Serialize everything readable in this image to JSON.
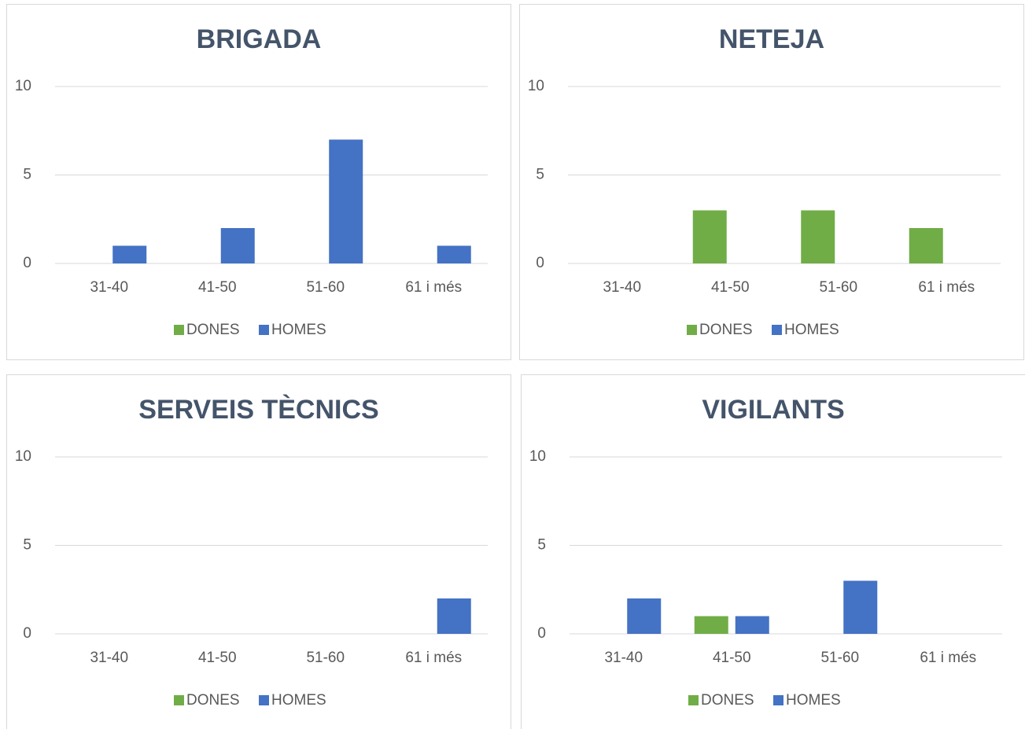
{
  "chart_data": [
    {
      "type": "bar",
      "title": "BRIGADA",
      "categories": [
        "31-40",
        "41-50",
        "51-60",
        "61 i més"
      ],
      "series": [
        {
          "name": "DONES",
          "color": "#70ad47",
          "values": [
            0,
            0,
            0,
            0
          ]
        },
        {
          "name": "HOMES",
          "color": "#4472c4",
          "values": [
            1,
            2,
            7,
            1
          ]
        }
      ],
      "ylim": [
        0,
        10
      ],
      "yticks": [
        0,
        5,
        10
      ],
      "grid": true,
      "legend": "bottom"
    },
    {
      "type": "bar",
      "title": "NETEJA",
      "categories": [
        "31-40",
        "41-50",
        "51-60",
        "61 i més"
      ],
      "series": [
        {
          "name": "DONES",
          "color": "#70ad47",
          "values": [
            0,
            3,
            3,
            2
          ]
        },
        {
          "name": "HOMES",
          "color": "#4472c4",
          "values": [
            0,
            0,
            0,
            0
          ]
        }
      ],
      "ylim": [
        0,
        10
      ],
      "yticks": [
        0,
        5,
        10
      ],
      "grid": true,
      "legend": "bottom"
    },
    {
      "type": "bar",
      "title": "SERVEIS TÈCNICS",
      "categories": [
        "31-40",
        "41-50",
        "51-60",
        "61 i més"
      ],
      "series": [
        {
          "name": "DONES",
          "color": "#70ad47",
          "values": [
            0,
            0,
            0,
            0
          ]
        },
        {
          "name": "HOMES",
          "color": "#4472c4",
          "values": [
            0,
            0,
            0,
            2
          ]
        }
      ],
      "ylim": [
        0,
        10
      ],
      "yticks": [
        0,
        5,
        10
      ],
      "grid": true,
      "legend": "bottom"
    },
    {
      "type": "bar",
      "title": "VIGILANTS",
      "categories": [
        "31-40",
        "41-50",
        "51-60",
        "61 i més"
      ],
      "series": [
        {
          "name": "DONES",
          "color": "#70ad47",
          "values": [
            0,
            1,
            0,
            0
          ]
        },
        {
          "name": "HOMES",
          "color": "#4472c4",
          "values": [
            2,
            1,
            3,
            0
          ]
        }
      ],
      "ylim": [
        0,
        10
      ],
      "yticks": [
        0,
        5,
        10
      ],
      "grid": true,
      "legend": "bottom"
    }
  ]
}
